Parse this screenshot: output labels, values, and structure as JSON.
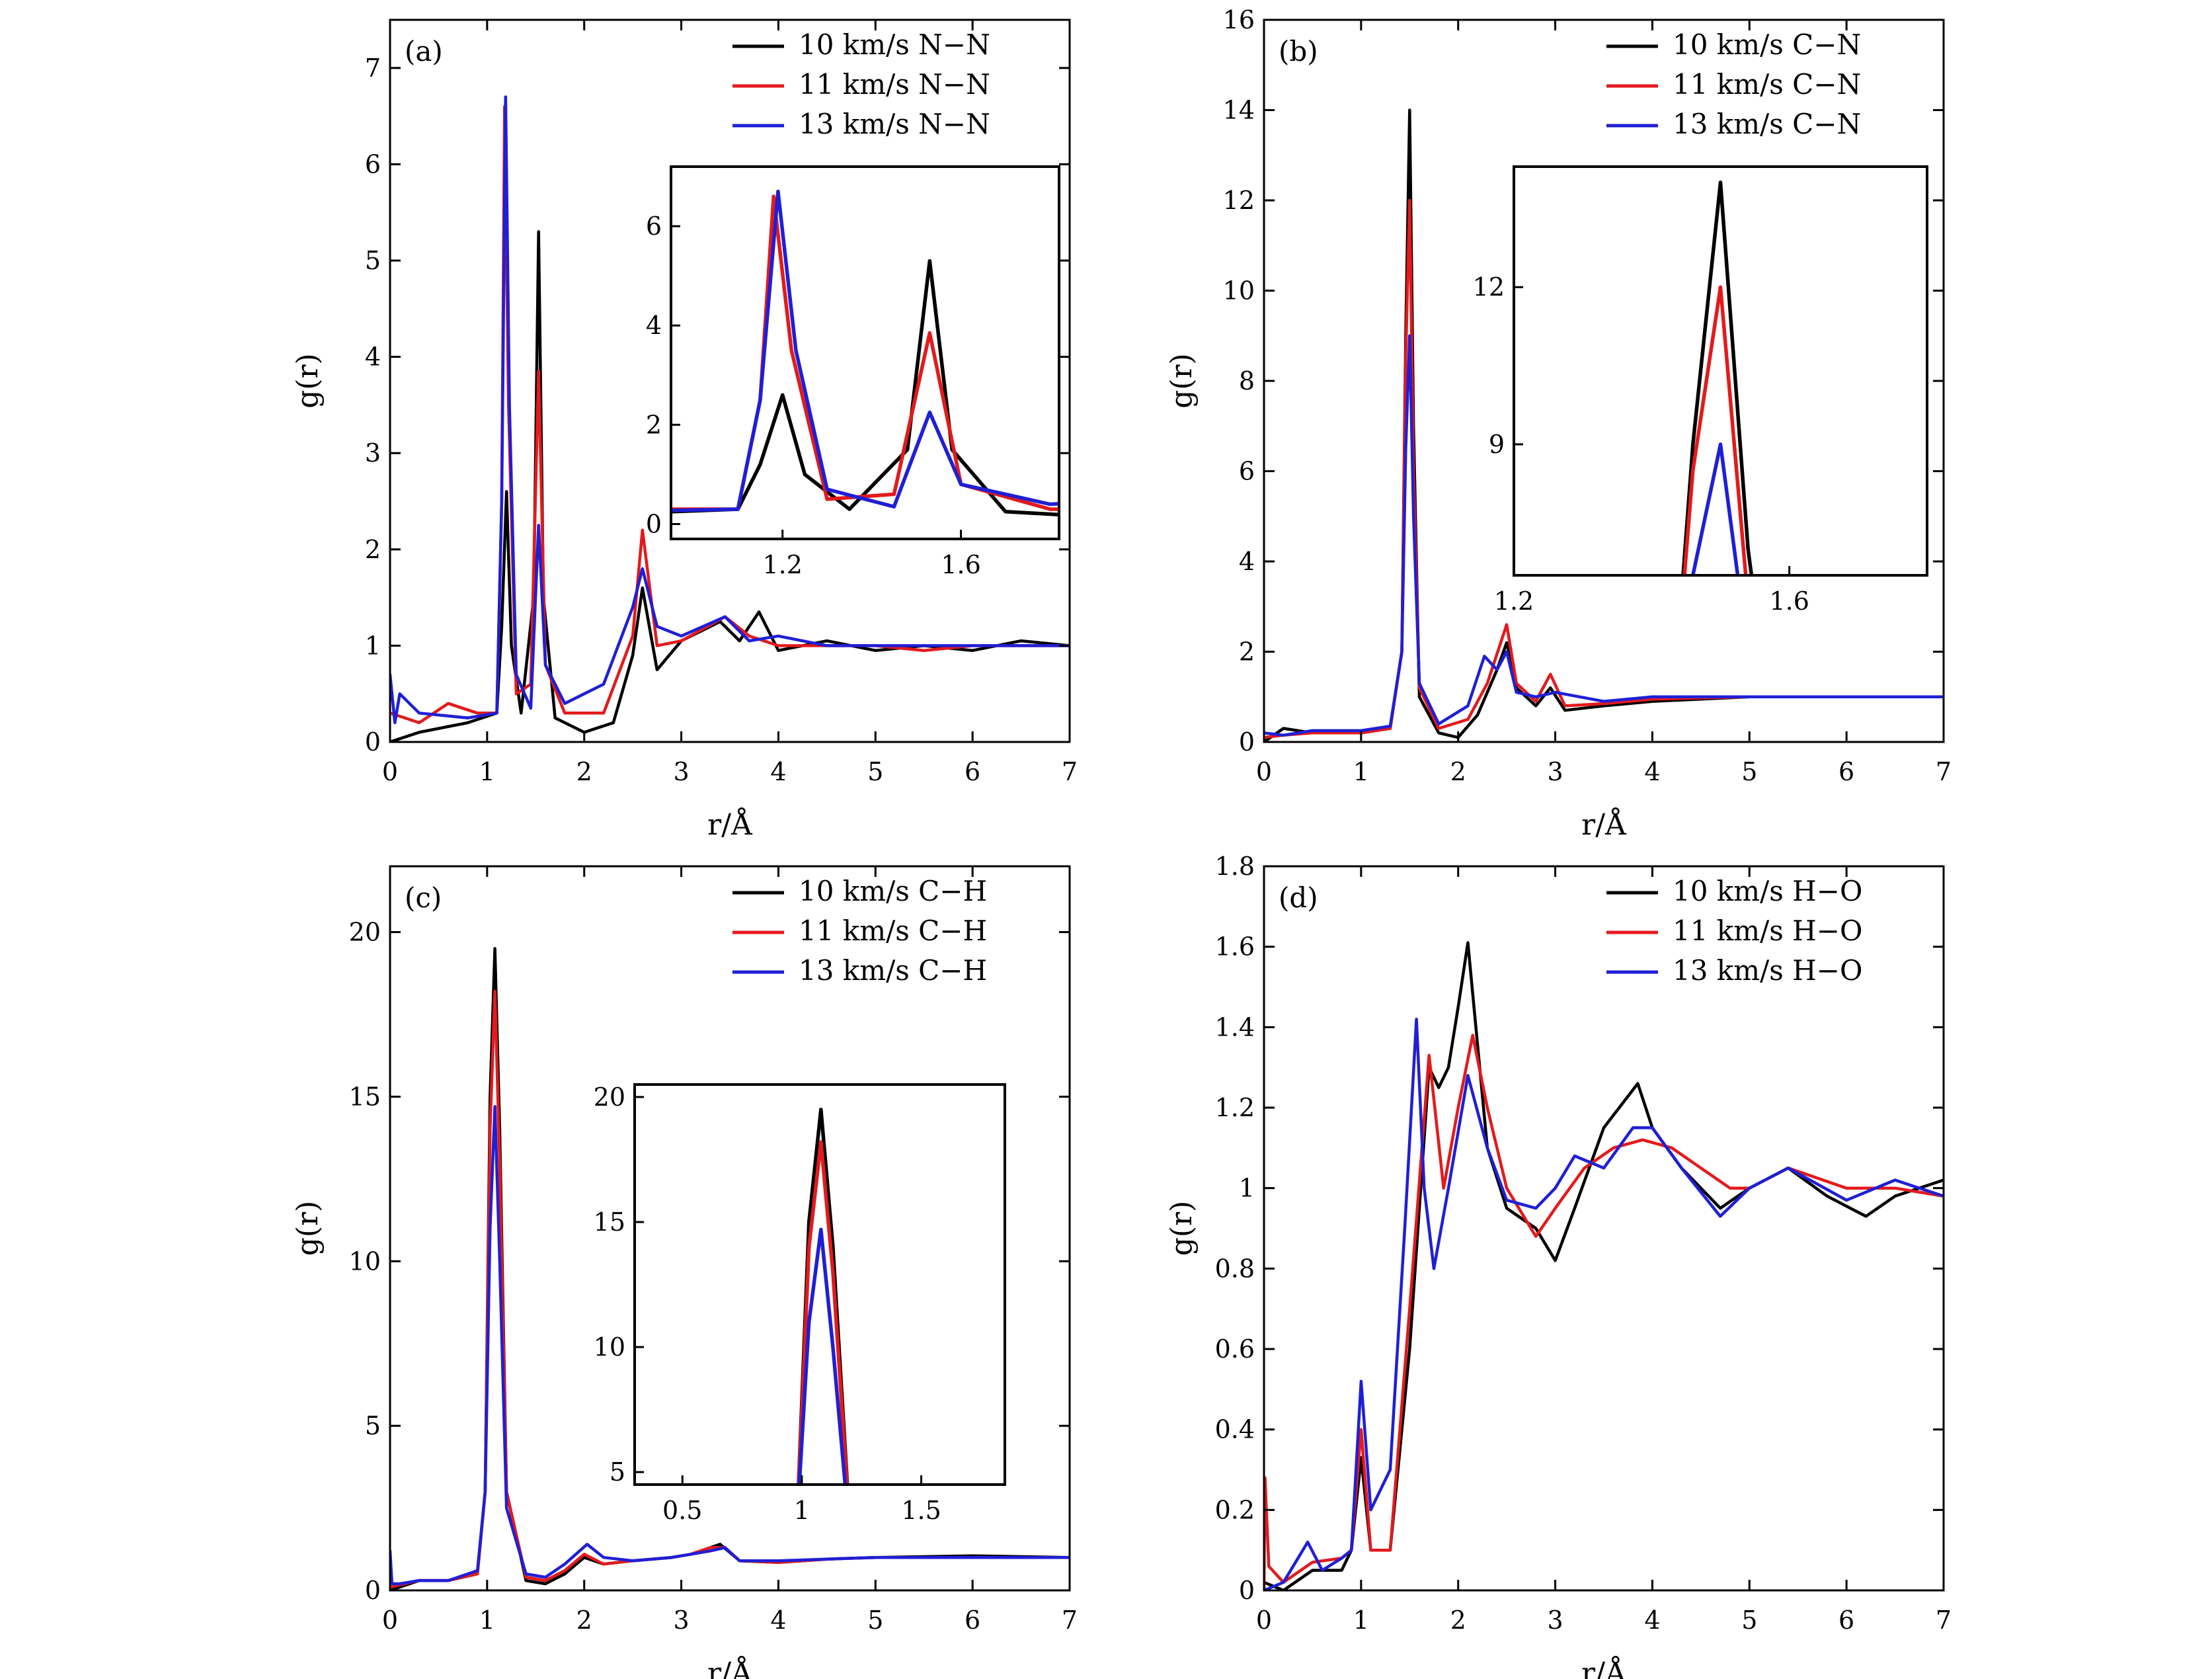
{
  "colors": {
    "s10": "#000000",
    "s11": "#e31a1c",
    "s13": "#1f1fd6"
  },
  "chart_data": [
    {
      "type": "line",
      "panel_label": "(a)",
      "xlabel": "r/Å",
      "ylabel": "g(r)",
      "xlim": [
        0,
        7
      ],
      "ylim": [
        0,
        7.5
      ],
      "xticks": [
        0,
        1,
        2,
        3,
        4,
        5,
        6,
        7
      ],
      "yticks": [
        0,
        1,
        2,
        3,
        4,
        5,
        6,
        7
      ],
      "legend": "top-right",
      "series": [
        {
          "name": "10 km/s N−N",
          "color": "s10",
          "x": [
            0,
            0.3,
            0.8,
            1.1,
            1.15,
            1.2,
            1.25,
            1.35,
            1.48,
            1.53,
            1.58,
            1.7,
            2.0,
            2.3,
            2.5,
            2.6,
            2.75,
            3.0,
            3.4,
            3.6,
            3.8,
            4.0,
            4.5,
            5.0,
            5.5,
            6.0,
            6.5,
            7.0
          ],
          "y": [
            0,
            0.1,
            0.2,
            0.3,
            1.2,
            2.6,
            1.0,
            0.3,
            1.5,
            5.3,
            1.5,
            0.25,
            0.1,
            0.2,
            0.9,
            1.6,
            0.75,
            1.05,
            1.25,
            1.05,
            1.35,
            0.95,
            1.05,
            0.95,
            1.0,
            0.95,
            1.05,
            1.0
          ]
        },
        {
          "name": "11 km/s N−N",
          "color": "s11",
          "x": [
            0,
            0.3,
            0.6,
            0.9,
            1.1,
            1.15,
            1.18,
            1.22,
            1.3,
            1.45,
            1.53,
            1.6,
            1.8,
            2.2,
            2.5,
            2.6,
            2.75,
            3.0,
            3.45,
            3.7,
            4.0,
            4.5,
            5.0,
            5.5,
            6.0,
            6.5,
            7.0
          ],
          "y": [
            0.3,
            0.2,
            0.4,
            0.3,
            0.3,
            2.5,
            6.6,
            3.5,
            0.5,
            0.6,
            3.85,
            0.8,
            0.3,
            0.3,
            1.1,
            2.2,
            1.0,
            1.05,
            1.3,
            1.1,
            1.0,
            1.0,
            1.0,
            0.95,
            1.0,
            1.0,
            1.0
          ]
        },
        {
          "name": "13 km/s N−N",
          "color": "s13",
          "x": [
            0,
            0.05,
            0.1,
            0.3,
            0.8,
            1.1,
            1.15,
            1.19,
            1.23,
            1.3,
            1.45,
            1.53,
            1.6,
            1.8,
            2.2,
            2.5,
            2.6,
            2.75,
            3.0,
            3.45,
            3.7,
            4.0,
            4.5,
            5.0,
            5.5,
            6.0,
            6.5,
            7.0
          ],
          "y": [
            0.7,
            0.2,
            0.5,
            0.3,
            0.25,
            0.3,
            2.5,
            6.7,
            3.5,
            0.7,
            0.35,
            2.25,
            0.8,
            0.4,
            0.6,
            1.4,
            1.8,
            1.2,
            1.1,
            1.3,
            1.05,
            1.1,
            1.0,
            1.0,
            1.0,
            1.0,
            1.0,
            1.0
          ]
        }
      ],
      "inset": {
        "xlim": [
          0.95,
          1.82
        ],
        "ylim": [
          -0.3,
          7.2
        ],
        "xticks": [
          1.2,
          1.6
        ],
        "yticks": [
          0,
          2,
          4,
          6
        ]
      }
    },
    {
      "type": "line",
      "panel_label": "(b)",
      "xlabel": "r/Å",
      "ylabel": "g(r)",
      "xlim": [
        0,
        7
      ],
      "ylim": [
        0,
        16
      ],
      "xticks": [
        0,
        1,
        2,
        3,
        4,
        5,
        6,
        7
      ],
      "yticks": [
        0,
        2,
        4,
        6,
        8,
        10,
        12,
        14,
        16
      ],
      "legend": "top-right",
      "series": [
        {
          "name": "10 km/s C−N",
          "color": "s10",
          "x": [
            0,
            0.2,
            0.5,
            1.0,
            1.3,
            1.42,
            1.46,
            1.5,
            1.54,
            1.6,
            1.8,
            2.0,
            2.2,
            2.4,
            2.5,
            2.6,
            2.8,
            2.95,
            3.1,
            3.5,
            4.0,
            5.0,
            6.0,
            7.0
          ],
          "y": [
            0,
            0.3,
            0.2,
            0.2,
            0.3,
            2.0,
            9.0,
            14.0,
            7.0,
            1.0,
            0.2,
            0.1,
            0.6,
            1.6,
            2.2,
            1.2,
            0.8,
            1.2,
            0.7,
            0.8,
            0.9,
            1.0,
            1.0,
            1.0
          ]
        },
        {
          "name": "11 km/s C−N",
          "color": "s11",
          "x": [
            0,
            0.2,
            0.5,
            1.0,
            1.3,
            1.42,
            1.46,
            1.5,
            1.54,
            1.6,
            1.8,
            2.1,
            2.3,
            2.5,
            2.6,
            2.8,
            2.95,
            3.1,
            3.5,
            4.0,
            5.0,
            6.0,
            7.0
          ],
          "y": [
            0.1,
            0.15,
            0.2,
            0.2,
            0.3,
            2.0,
            8.5,
            12.0,
            6.0,
            1.2,
            0.3,
            0.5,
            1.3,
            2.6,
            1.3,
            0.9,
            1.5,
            0.8,
            0.85,
            0.95,
            1.0,
            1.0,
            1.0
          ]
        },
        {
          "name": "13 km/s C−N",
          "color": "s13",
          "x": [
            0,
            0.2,
            0.5,
            1.0,
            1.3,
            1.42,
            1.46,
            1.5,
            1.54,
            1.6,
            1.8,
            2.1,
            2.27,
            2.4,
            2.5,
            2.6,
            2.8,
            3.0,
            3.5,
            4.0,
            5.0,
            6.0,
            7.0
          ],
          "y": [
            0.2,
            0.15,
            0.25,
            0.25,
            0.35,
            2.0,
            6.5,
            9.0,
            5.0,
            1.3,
            0.4,
            0.8,
            1.9,
            1.6,
            2.0,
            1.1,
            1.0,
            1.1,
            0.9,
            1.0,
            1.0,
            1.0,
            1.0
          ]
        }
      ],
      "inset": {
        "xlim": [
          1.2,
          1.8
        ],
        "ylim": [
          6.5,
          14.3
        ],
        "xticks": [
          1.2,
          1.6
        ],
        "yticks": [
          9,
          12
        ]
      }
    },
    {
      "type": "line",
      "panel_label": "(c)",
      "xlabel": "r/Å",
      "ylabel": "g(r)",
      "xlim": [
        0,
        7
      ],
      "ylim": [
        0,
        22
      ],
      "xticks": [
        0,
        1,
        2,
        3,
        4,
        5,
        6,
        7
      ],
      "yticks": [
        0,
        5,
        10,
        15,
        20
      ],
      "legend": "top-right",
      "series": [
        {
          "name": "10 km/s C−H",
          "color": "s10",
          "x": [
            0,
            0.3,
            0.6,
            0.9,
            0.98,
            1.03,
            1.08,
            1.13,
            1.2,
            1.4,
            1.6,
            1.8,
            2.0,
            2.2,
            2.5,
            2.9,
            3.1,
            3.3,
            3.4,
            3.6,
            4.0,
            4.5,
            5.0,
            6.0,
            7.0
          ],
          "y": [
            0,
            0.3,
            0.3,
            0.5,
            3.0,
            15.0,
            19.5,
            14.0,
            3.0,
            0.3,
            0.2,
            0.5,
            1.0,
            0.8,
            0.9,
            1.0,
            1.1,
            1.3,
            1.4,
            0.9,
            0.85,
            0.95,
            1.0,
            1.05,
            1.0
          ]
        },
        {
          "name": "11 km/s C−H",
          "color": "s11",
          "x": [
            0,
            0.3,
            0.6,
            0.9,
            0.98,
            1.03,
            1.08,
            1.13,
            1.2,
            1.4,
            1.6,
            1.8,
            2.0,
            2.2,
            2.5,
            2.9,
            3.1,
            3.3,
            3.45,
            3.6,
            4.0,
            4.5,
            5.0,
            6.0,
            7.0
          ],
          "y": [
            0.1,
            0.3,
            0.3,
            0.5,
            3.0,
            14.0,
            18.2,
            13.0,
            3.0,
            0.4,
            0.3,
            0.6,
            1.1,
            0.8,
            0.9,
            1.0,
            1.1,
            1.3,
            1.3,
            0.9,
            0.85,
            0.95,
            1.0,
            1.0,
            1.0
          ]
        },
        {
          "name": "13 km/s C−H",
          "color": "s13",
          "x": [
            0,
            0.02,
            0.1,
            0.3,
            0.6,
            0.9,
            0.98,
            1.03,
            1.08,
            1.13,
            1.2,
            1.4,
            1.6,
            1.8,
            2.03,
            2.2,
            2.5,
            2.9,
            3.1,
            3.3,
            3.45,
            3.6,
            4.0,
            4.5,
            5.0,
            6.0,
            7.0
          ],
          "y": [
            1.2,
            0.2,
            0.2,
            0.3,
            0.3,
            0.6,
            3.0,
            11.0,
            14.7,
            10.0,
            2.5,
            0.5,
            0.4,
            0.8,
            1.4,
            1.0,
            0.9,
            1.0,
            1.1,
            1.2,
            1.3,
            0.9,
            0.9,
            0.95,
            1.0,
            1.0,
            1.0
          ]
        }
      ],
      "inset": {
        "xlim": [
          0.3,
          1.85
        ],
        "ylim": [
          4.5,
          20.5
        ],
        "xticks": [
          0.5,
          1.0,
          1.5
        ],
        "yticks": [
          5,
          10,
          15,
          20
        ]
      }
    },
    {
      "type": "line",
      "panel_label": "(d)",
      "xlabel": "r/Å",
      "ylabel": "g(r)",
      "xlim": [
        0,
        7
      ],
      "ylim": [
        0,
        1.8
      ],
      "xticks": [
        0,
        1,
        2,
        3,
        4,
        5,
        6,
        7
      ],
      "yticks": [
        0,
        0.2,
        0.4,
        0.6,
        0.8,
        1.0,
        1.2,
        1.4,
        1.6,
        1.8
      ],
      "legend": "top-right",
      "series": [
        {
          "name": "10 km/s H−O",
          "color": "s10",
          "x": [
            0,
            0.2,
            0.5,
            0.8,
            0.9,
            1.0,
            1.1,
            1.3,
            1.5,
            1.7,
            1.8,
            1.9,
            2.0,
            2.1,
            2.3,
            2.5,
            2.8,
            3.0,
            3.2,
            3.5,
            3.85,
            4.0,
            4.3,
            4.7,
            5.0,
            5.4,
            5.8,
            6.2,
            6.5,
            7.0
          ],
          "y": [
            0.02,
            0.0,
            0.05,
            0.05,
            0.1,
            0.33,
            0.1,
            0.1,
            0.6,
            1.3,
            1.25,
            1.3,
            1.45,
            1.61,
            1.1,
            0.95,
            0.9,
            0.82,
            0.95,
            1.15,
            1.26,
            1.15,
            1.05,
            0.95,
            1.0,
            1.05,
            0.98,
            0.93,
            0.98,
            1.02
          ]
        },
        {
          "name": "11 km/s H−O",
          "color": "s11",
          "x": [
            0,
            0.01,
            0.05,
            0.2,
            0.5,
            0.8,
            0.9,
            1.0,
            1.1,
            1.3,
            1.5,
            1.7,
            1.85,
            2.0,
            2.15,
            2.3,
            2.5,
            2.8,
            3.0,
            3.3,
            3.6,
            3.9,
            4.2,
            4.5,
            4.8,
            5.0,
            5.4,
            6.0,
            6.5,
            7.0
          ],
          "y": [
            0.0,
            0.28,
            0.06,
            0.02,
            0.07,
            0.08,
            0.1,
            0.4,
            0.1,
            0.1,
            0.7,
            1.33,
            1.0,
            1.2,
            1.38,
            1.2,
            1.0,
            0.88,
            0.95,
            1.05,
            1.1,
            1.12,
            1.1,
            1.05,
            1.0,
            1.0,
            1.05,
            1.0,
            1.0,
            0.98
          ]
        },
        {
          "name": "13 km/s H−O",
          "color": "s13",
          "x": [
            0,
            0.2,
            0.45,
            0.6,
            0.8,
            0.9,
            1.0,
            1.1,
            1.3,
            1.45,
            1.57,
            1.65,
            1.75,
            1.9,
            2.1,
            2.3,
            2.5,
            2.8,
            3.0,
            3.2,
            3.5,
            3.8,
            4.0,
            4.3,
            4.7,
            5.0,
            5.4,
            6.0,
            6.5,
            7.0
          ],
          "y": [
            0.0,
            0.02,
            0.12,
            0.05,
            0.08,
            0.1,
            0.52,
            0.2,
            0.3,
            0.9,
            1.42,
            1.0,
            0.8,
            1.0,
            1.28,
            1.1,
            0.97,
            0.95,
            1.0,
            1.08,
            1.05,
            1.15,
            1.15,
            1.05,
            0.93,
            1.0,
            1.05,
            0.97,
            1.02,
            0.98
          ]
        }
      ],
      "inset": null
    }
  ]
}
